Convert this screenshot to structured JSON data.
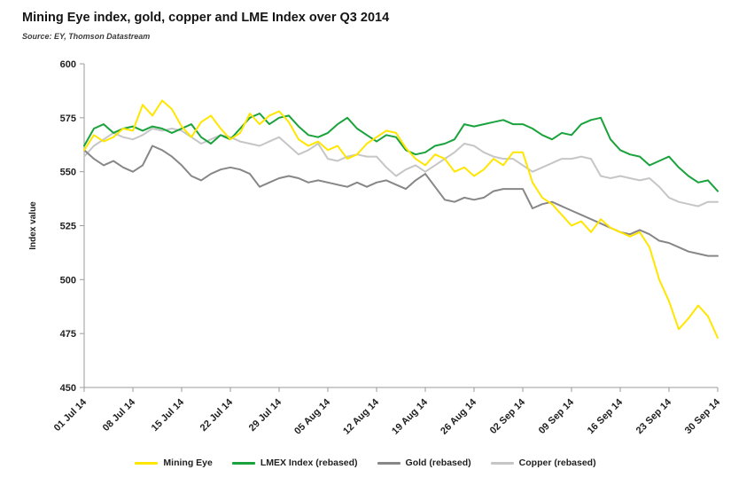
{
  "page": {
    "title": "Mining Eye index, gold, copper and LME Index over Q3 2014",
    "source": "Source: EY, Thomson Datastream"
  },
  "chart_data": {
    "type": "line",
    "title": "Mining Eye index, gold, copper and LME Index over Q3 2014",
    "subtitle": "Source: EY, Thomson Datastream",
    "xlabel": "",
    "ylabel": "Index value",
    "ylim": [
      450,
      600
    ],
    "ytick_step": 25,
    "grid": false,
    "legend_position": "bottom",
    "x_tick_every": 5,
    "x_tick_labels": [
      "01 Jul 14",
      "08 Jul 14",
      "15 Jul 14",
      "22 Jul 14",
      "29 Jul 14",
      "05 Aug 14",
      "12 Aug 14",
      "19 Aug 14",
      "26 Aug 14",
      "02 Sep 14",
      "09 Sep 14",
      "16 Sep 14",
      "23 Sep 14",
      "30 Sep 14"
    ],
    "series": [
      {
        "name": "Mining Eye",
        "color": "#ffe600",
        "values": [
          560,
          567,
          564,
          566,
          570,
          569,
          581,
          576,
          583,
          579,
          571,
          566,
          573,
          576,
          570,
          565,
          568,
          577,
          572,
          576,
          578,
          573,
          565,
          562,
          564,
          560,
          562,
          556,
          558,
          563,
          566,
          569,
          568,
          561,
          556,
          553,
          558,
          556,
          550,
          552,
          548,
          551,
          556,
          553,
          559,
          559,
          545,
          538,
          535,
          530,
          525,
          527,
          522,
          528,
          524,
          522,
          520,
          522,
          515,
          500,
          490,
          477,
          482,
          488,
          483,
          473
        ]
      },
      {
        "name": "LMEX Index (rebased)",
        "color": "#1aa33c",
        "values": [
          562,
          570,
          572,
          568,
          570,
          571,
          569,
          571,
          570,
          568,
          570,
          572,
          566,
          563,
          567,
          565,
          570,
          575,
          577,
          572,
          575,
          576,
          571,
          567,
          566,
          568,
          572,
          575,
          570,
          567,
          564,
          567,
          566,
          560,
          558,
          559,
          562,
          563,
          565,
          572,
          571,
          572,
          573,
          574,
          572,
          572,
          570,
          567,
          565,
          568,
          567,
          572,
          574,
          575,
          565,
          560,
          558,
          557,
          553,
          555,
          557,
          552,
          548,
          545,
          546,
          541
        ]
      },
      {
        "name": "Gold (rebased)",
        "color": "#878787",
        "values": [
          560,
          556,
          553,
          555,
          552,
          550,
          553,
          562,
          560,
          557,
          553,
          548,
          546,
          549,
          551,
          552,
          551,
          549,
          543,
          545,
          547,
          548,
          547,
          545,
          546,
          545,
          544,
          543,
          545,
          543,
          545,
          546,
          544,
          542,
          546,
          549,
          543,
          537,
          536,
          538,
          537,
          538,
          541,
          542,
          542,
          542,
          533,
          535,
          536,
          534,
          532,
          530,
          528,
          526,
          524,
          522,
          521,
          523,
          521,
          518,
          517,
          515,
          513,
          512,
          511,
          511
        ]
      },
      {
        "name": "Copper (rebased)",
        "color": "#c6c6c6",
        "values": [
          557,
          562,
          565,
          568,
          566,
          565,
          567,
          570,
          569,
          570,
          569,
          566,
          563,
          565,
          567,
          566,
          564,
          563,
          562,
          564,
          566,
          562,
          558,
          560,
          563,
          556,
          555,
          557,
          558,
          557,
          557,
          552,
          548,
          551,
          553,
          550,
          553,
          556,
          559,
          563,
          562,
          559,
          557,
          556,
          556,
          553,
          550,
          552,
          554,
          556,
          556,
          557,
          556,
          548,
          547,
          548,
          547,
          546,
          547,
          543,
          538,
          536,
          535,
          534,
          536,
          536
        ]
      }
    ]
  }
}
